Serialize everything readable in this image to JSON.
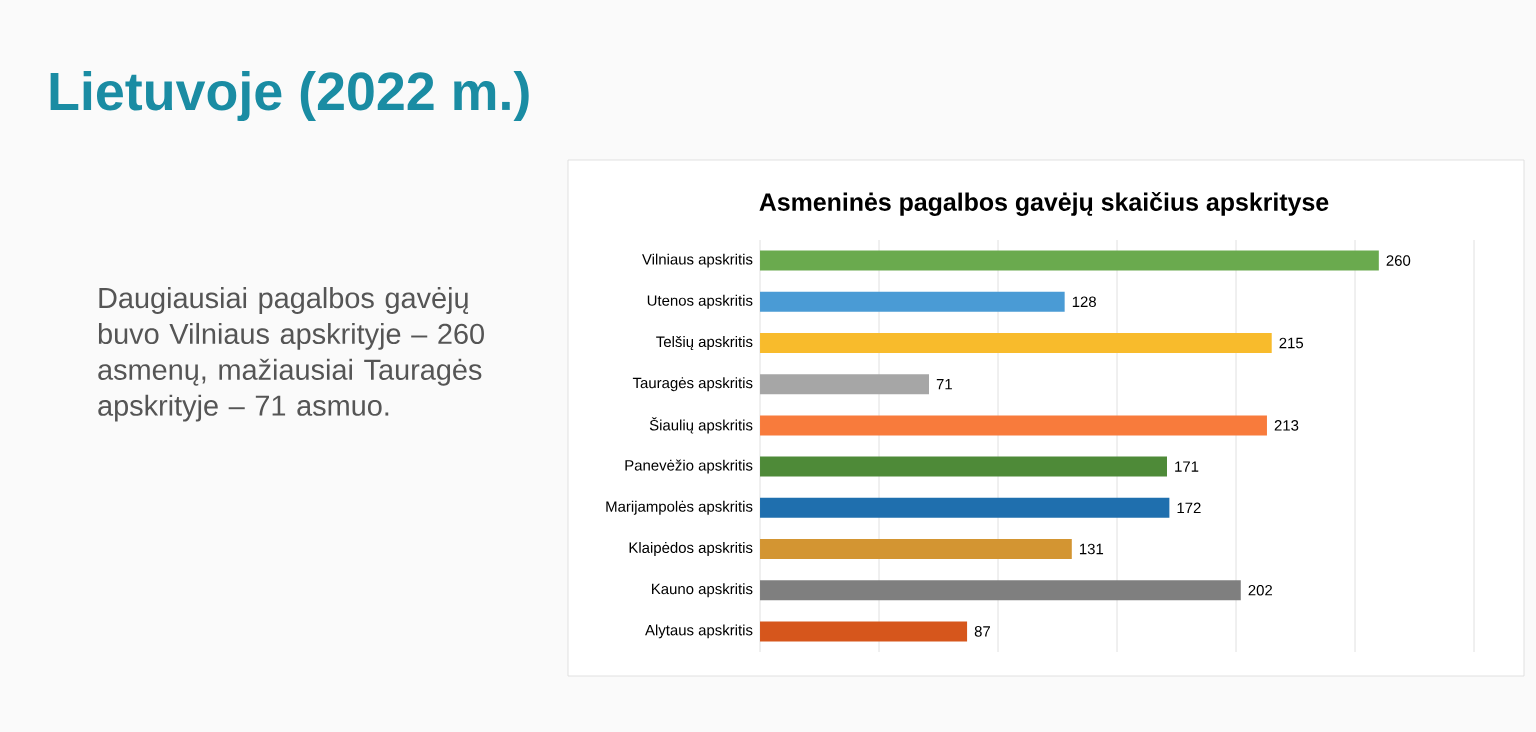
{
  "chart_data": {
    "type": "bar",
    "orientation": "horizontal",
    "title": "Asmeninės pagalbos gavėjų skaičius apskrityse",
    "categories": [
      "Vilniaus apskritis",
      "Utenos apskritis",
      "Telšių apskritis",
      "Tauragės apskritis",
      "Šiaulių apskritis",
      "Panevėžio apskritis",
      "Marijampolės apskritis",
      "Klaipėdos apskritis",
      "Kauno apskritis",
      "Alytaus apskritis"
    ],
    "values": [
      260,
      128,
      215,
      71,
      213,
      171,
      172,
      131,
      202,
      87
    ],
    "colors": [
      "#6aaa4e",
      "#4a9bd5",
      "#f8bb2c",
      "#a6a6a6",
      "#f87b3c",
      "#4e8a38",
      "#1f6fae",
      "#d39532",
      "#7f7f7f",
      "#d6561c"
    ],
    "xlim": [
      0,
      300
    ],
    "xticks": [
      {
        "value": 0,
        "label": null
      },
      {
        "value": 50,
        "label": null
      },
      {
        "value": 100,
        "label": null
      },
      {
        "value": 150,
        "label": null
      },
      {
        "value": 200,
        "label": null
      },
      {
        "value": 250,
        "label": null
      },
      {
        "value": 300,
        "label": null
      }
    ],
    "tick_labels": "y",
    "grid": "x",
    "data_labels": true,
    "annotations": [
      "Lietuvoje (2022 m.)",
      "Daugiausiai pagalbos gavėjų buvo Vilniaus apskrityje – 260 asmenų, mažiausiai Tauragės apskrityje – 71 asmuo."
    ]
  }
}
